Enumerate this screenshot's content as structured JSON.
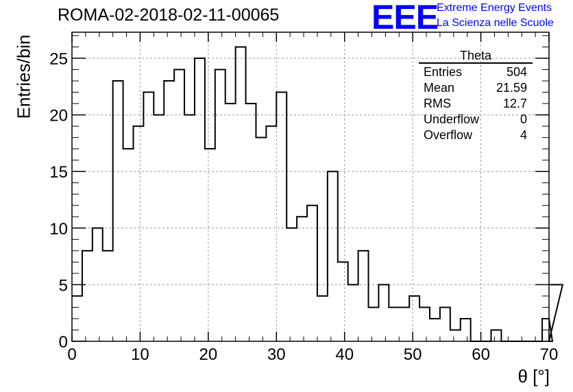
{
  "header": {
    "run_title": "ROMA-02-2018-02-11-00065",
    "logo_text": "EEE",
    "tagline_1": "Extreme Energy Events",
    "tagline_2": "La Scienza nelle Scuole"
  },
  "stats": {
    "title": "Theta",
    "rows": [
      {
        "label": "Entries",
        "value": "504"
      },
      {
        "label": "Mean",
        "value": "21.59"
      },
      {
        "label": "RMS",
        "value": "12.7"
      },
      {
        "label": "Underflow",
        "value": "0"
      },
      {
        "label": "Overflow",
        "value": "4"
      }
    ]
  },
  "chart_data": {
    "type": "bar",
    "style": "step-histogram",
    "title": "ROMA-02-2018-02-11-00065",
    "xlabel": "θ [°]",
    "ylabel": "Entries/bin",
    "xlim": [
      0,
      70
    ],
    "ylim": [
      0,
      27.3
    ],
    "bin_width": 1.5,
    "x_ticks": [
      0,
      10,
      20,
      30,
      40,
      50,
      60,
      70
    ],
    "y_ticks": [
      0,
      5,
      10,
      15,
      20,
      25
    ],
    "grid": true,
    "legend": "top-right stats box",
    "colors": {
      "line": "#000000",
      "logo": "#0000ff",
      "grid": "#999999"
    },
    "bin_edges_start": 0,
    "values": [
      4,
      8,
      10,
      8,
      23,
      17,
      19,
      22,
      20,
      23,
      24,
      20,
      25,
      17,
      24,
      21,
      26,
      21,
      18,
      19,
      22,
      10,
      11,
      12,
      4,
      15,
      7,
      5,
      8,
      3,
      5,
      3,
      3,
      4,
      3,
      2,
      3,
      1,
      2,
      0,
      0,
      1,
      0,
      0,
      0,
      0,
      2,
      0,
      5
    ]
  }
}
